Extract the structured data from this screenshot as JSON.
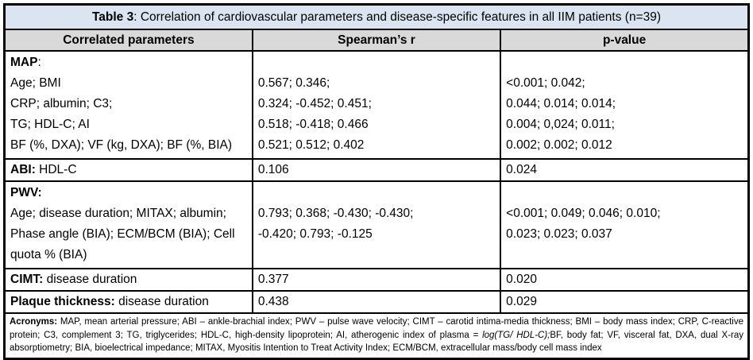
{
  "table": {
    "title": {
      "bold": "Table 3",
      "rest": ": Correlation of cardiovascular parameters and disease-specific features in all IIM patients (n=39)"
    },
    "headers": {
      "param": "Correlated parameters",
      "r": "Spearman’s r",
      "p": "p-value"
    },
    "rows": {
      "map": {
        "label": "MAP",
        "colon": ":",
        "param_lines": [
          "Age; BMI",
          "CRP; albumin; C3;",
          "TG; HDL-C; AI",
          "BF (%, DXA); VF (kg, DXA); BF (%, BIA)"
        ],
        "r_lines": [
          "",
          "0.567; 0.346;",
          "0.324; -0.452; 0.451;",
          "0.518; -0.418; 0.466",
          "0.521; 0.512; 0.402"
        ],
        "p_lines": [
          "",
          "<0.001; 0.042;",
          "0.044; 0.014; 0.014;",
          "0.004; 0,024; 0.011;",
          "0.002; 0.002; 0.012"
        ]
      },
      "abi": {
        "label": "ABI:",
        "text": " HDL-C",
        "r": "0.106",
        "p": "0.024"
      },
      "pwv": {
        "label": "PWV:",
        "param_lines": [
          "Age; disease duration; MITAX; albumin;",
          "Phase angle (BIA); ECM/BCM (BIA); Cell",
          "quota % (BIA)"
        ],
        "r_lines": [
          "",
          "0.793; 0.368; -0.430; -0.430;",
          "-0.420; 0.793; -0.125"
        ],
        "p_lines": [
          "",
          "<0.001; 0.049; 0.046; 0.010;",
          "0.023; 0.023; 0.037"
        ]
      },
      "cimt": {
        "label": "CIMT:",
        "text": " disease duration",
        "r": "0.377",
        "p": "0.020"
      },
      "plaque": {
        "label": "Plaque thickness:",
        "text": " disease duration",
        "r": "0.438",
        "p": "0.029"
      }
    },
    "footnote": {
      "label": "Acronyms:",
      "part1": " MAP, mean arterial pressure; ABI – ankle-brachial index; PWV – pulse wave velocity; CIMT – carotid intima-media thickness; BMI – body mass index; CRP, C-reactive protein; C3, complement 3; TG, triglycerides; HDL-C, high-density lipoprotein; AI, atherogenic index of plasma ",
      "italic": "= log(TG/ HDL-C);",
      "part2": "BF, body fat; VF, visceral fat, DXA, dual X-ray absorptiometry; BIA, bioelectrical impedance; MITAX, Myositis Intention to Treat Activity Index; ECM/BCM, extracellular mass/body cell mass index"
    },
    "colors": {
      "title_bg": "#dbe5f1",
      "header_bg": "#d9d9d9",
      "border": "#000000",
      "text": "#000000"
    }
  }
}
